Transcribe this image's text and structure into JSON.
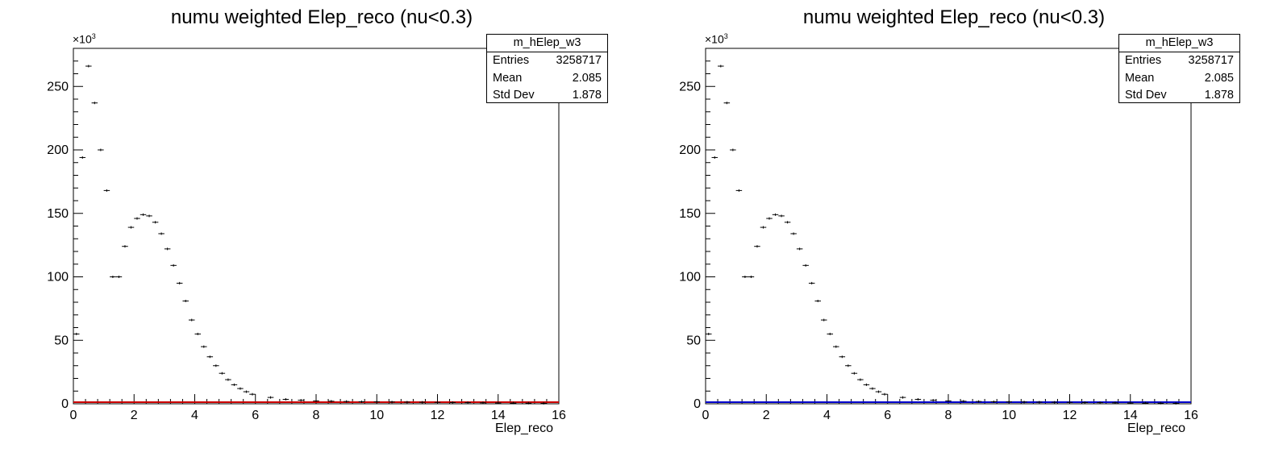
{
  "chart_data": [
    {
      "type": "histogram",
      "title": "numu weighted Elep_reco (nu<0.3)",
      "xlabel": "Elep_reco",
      "ylabel": "",
      "y_multiplier": "×10",
      "y_multiplier_exp": "3",
      "xlim": [
        0,
        16
      ],
      "ylim": [
        0,
        280000
      ],
      "x_ticks": [
        "0",
        "2",
        "4",
        "6",
        "8",
        "10",
        "12",
        "14",
        "16"
      ],
      "y_ticks": [
        "0",
        "50",
        "100",
        "150",
        "200",
        "250"
      ],
      "grid": false,
      "overlay_color": "#cc0000",
      "stats": {
        "name": "m_hElep_w3",
        "rows": [
          {
            "label": "Entries",
            "value": "3258717"
          },
          {
            "label": "Mean",
            "value": "2.085"
          },
          {
            "label": "Std Dev",
            "value": "1.878"
          }
        ]
      },
      "series": [
        {
          "bin_width": 0.2,
          "x": [
            0.1,
            0.3,
            0.5,
            0.7,
            0.9,
            1.1,
            1.3,
            1.5,
            1.7,
            1.9,
            2.1,
            2.3,
            2.5,
            2.7,
            2.9,
            3.1,
            3.3,
            3.5,
            3.7,
            3.9,
            4.1,
            4.3,
            4.5,
            4.7,
            4.9,
            5.1,
            5.3,
            5.5,
            5.7,
            5.9,
            6.5,
            7.0,
            7.5,
            8.0,
            8.5,
            9.0,
            9.5,
            10.0,
            10.5,
            11.0,
            11.5,
            12.0,
            12.5,
            13.0,
            13.5,
            14.0,
            14.5,
            15.0,
            15.5
          ],
          "values": [
            55000,
            194000,
            266000,
            237000,
            200000,
            168000,
            100000,
            100000,
            124000,
            139000,
            146000,
            149000,
            148000,
            143000,
            134000,
            122000,
            109000,
            95000,
            81000,
            66000,
            55000,
            45000,
            37000,
            30000,
            24000,
            19000,
            15000,
            12000,
            9500,
            7500,
            5000,
            3500,
            2800,
            2300,
            2000,
            1800,
            1600,
            1500,
            1400,
            1300,
            1200,
            1100,
            1000,
            900,
            800,
            700,
            600,
            500,
            400
          ]
        }
      ]
    },
    {
      "type": "histogram",
      "title": "numu weighted Elep_reco (nu<0.3)",
      "xlabel": "Elep_reco",
      "ylabel": "",
      "y_multiplier": "×10",
      "y_multiplier_exp": "3",
      "xlim": [
        0,
        16
      ],
      "ylim": [
        0,
        280000
      ],
      "x_ticks": [
        "0",
        "2",
        "4",
        "6",
        "8",
        "10",
        "12",
        "14",
        "16"
      ],
      "y_ticks": [
        "0",
        "50",
        "100",
        "150",
        "200",
        "250"
      ],
      "grid": false,
      "overlay_color": "#0000cc",
      "stats": {
        "name": "m_hElep_w3",
        "rows": [
          {
            "label": "Entries",
            "value": "3258717"
          },
          {
            "label": "Mean",
            "value": "2.085"
          },
          {
            "label": "Std Dev",
            "value": "1.878"
          }
        ]
      },
      "series": [
        {
          "bin_width": 0.2,
          "x": [
            0.1,
            0.3,
            0.5,
            0.7,
            0.9,
            1.1,
            1.3,
            1.5,
            1.7,
            1.9,
            2.1,
            2.3,
            2.5,
            2.7,
            2.9,
            3.1,
            3.3,
            3.5,
            3.7,
            3.9,
            4.1,
            4.3,
            4.5,
            4.7,
            4.9,
            5.1,
            5.3,
            5.5,
            5.7,
            5.9,
            6.5,
            7.0,
            7.5,
            8.0,
            8.5,
            9.0,
            9.5,
            10.0,
            10.5,
            11.0,
            11.5,
            12.0,
            12.5,
            13.0,
            13.5,
            14.0,
            14.5,
            15.0,
            15.5
          ],
          "values": [
            55000,
            194000,
            266000,
            237000,
            200000,
            168000,
            100000,
            100000,
            124000,
            139000,
            146000,
            149000,
            148000,
            143000,
            134000,
            122000,
            109000,
            95000,
            81000,
            66000,
            55000,
            45000,
            37000,
            30000,
            24000,
            19000,
            15000,
            12000,
            9500,
            7500,
            5000,
            3500,
            2800,
            2300,
            2000,
            1800,
            1600,
            1500,
            1400,
            1300,
            1200,
            1100,
            1000,
            900,
            800,
            700,
            600,
            500,
            400
          ]
        }
      ]
    }
  ]
}
